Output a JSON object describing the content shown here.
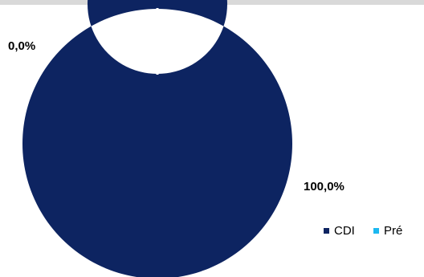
{
  "chart_data": {
    "type": "pie",
    "donut": true,
    "categories": [
      "CDI",
      "Pré"
    ],
    "values": [
      100.0,
      0.0
    ],
    "data_labels": [
      "100,0%",
      "0,0%"
    ],
    "colors": [
      "#0d2461",
      "#1cb8f0"
    ],
    "separator_color": "#ffffff",
    "legend": {
      "placement": "right-bottom",
      "entries": [
        "CDI",
        "Pré"
      ]
    }
  }
}
